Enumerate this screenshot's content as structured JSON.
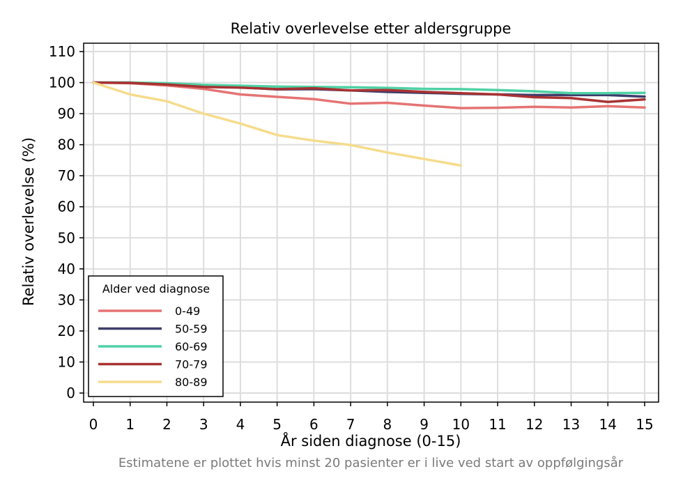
{
  "chart_data": {
    "type": "line",
    "title": "Relativ overlevelse etter aldersgruppe",
    "xlabel": "År siden diagnose (0-15)",
    "ylabel": "Relativ overlevelse (%)",
    "footnote": "Estimatene er plottet hvis minst 20 pasienter er i live ved start av oppfølgingsår",
    "xlim": [
      0,
      15
    ],
    "ylim": [
      0,
      110
    ],
    "xticks": [
      0,
      1,
      2,
      3,
      4,
      5,
      6,
      7,
      8,
      9,
      10,
      11,
      12,
      13,
      14,
      15
    ],
    "yticks": [
      0,
      10,
      20,
      30,
      40,
      50,
      60,
      70,
      80,
      90,
      100,
      110
    ],
    "grid": true,
    "legend": {
      "title": "Alder ved diagnose",
      "position": "bottom-left"
    },
    "series": [
      {
        "name": "0-49",
        "color": "#e57373",
        "x": [
          0,
          1,
          2,
          3,
          4,
          5,
          6,
          7,
          8,
          9,
          10,
          11,
          12,
          13,
          14,
          15
        ],
        "y": [
          100,
          99.8,
          99.1,
          98.0,
          96.2,
          95.4,
          94.7,
          93.2,
          93.5,
          92.6,
          91.8,
          91.9,
          92.2,
          92.0,
          92.4,
          92.0
        ]
      },
      {
        "name": "50-59",
        "color": "#3d3d6b",
        "x": [
          0,
          1,
          2,
          3,
          4,
          5,
          6,
          7,
          8,
          9,
          10,
          11,
          12,
          13,
          14,
          15
        ],
        "y": [
          100,
          100.0,
          99.6,
          98.9,
          98.5,
          97.8,
          97.9,
          97.5,
          97.0,
          96.7,
          96.4,
          96.2,
          96.0,
          96.0,
          96.0,
          95.5
        ]
      },
      {
        "name": "60-69",
        "color": "#4fd1a5",
        "x": [
          0,
          1,
          2,
          3,
          4,
          5,
          6,
          7,
          8,
          9,
          10,
          11,
          12,
          13,
          14,
          15
        ],
        "y": [
          100,
          100.0,
          99.8,
          99.3,
          99.0,
          98.7,
          98.6,
          98.5,
          98.3,
          98.0,
          97.9,
          97.6,
          97.2,
          96.6,
          96.6,
          96.7
        ]
      },
      {
        "name": "70-79",
        "color": "#a83232",
        "x": [
          0,
          1,
          2,
          3,
          4,
          5,
          6,
          7,
          8,
          9,
          10,
          11,
          12,
          13,
          14,
          15
        ],
        "y": [
          100,
          99.9,
          99.4,
          98.6,
          98.4,
          97.9,
          98.2,
          97.5,
          97.6,
          97.0,
          96.6,
          96.2,
          95.3,
          95.0,
          93.8,
          94.6
        ]
      },
      {
        "name": "80-89",
        "color": "#f5dc8c",
        "x": [
          0,
          1,
          2,
          3,
          4,
          5,
          6,
          7,
          8,
          9,
          10
        ],
        "y": [
          100,
          96.2,
          94.0,
          90.0,
          86.8,
          83.1,
          81.3,
          79.9,
          77.5,
          75.4,
          73.3
        ]
      }
    ]
  }
}
